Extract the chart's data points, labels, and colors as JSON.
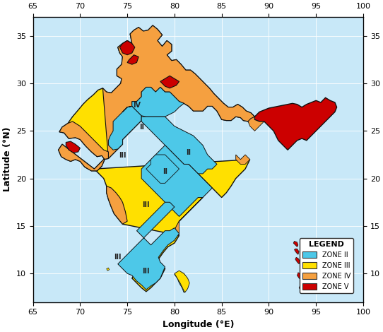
{
  "xlim": [
    65,
    100
  ],
  "ylim": [
    7,
    37
  ],
  "xticks": [
    65,
    70,
    75,
    80,
    85,
    90,
    95,
    100
  ],
  "yticks": [
    10,
    15,
    20,
    25,
    30,
    35
  ],
  "xlabel": "Longitude (°E)",
  "ylabel": "Latitude (°N)",
  "ocean_color": "#C8E8F8",
  "zone_colors": {
    "II": "#4DC8E8",
    "III": "#FFE000",
    "IV": "#F5A040",
    "V": "#CC0000"
  },
  "edge_color": "#111111",
  "figsize": [
    5.42,
    4.7
  ],
  "dpi": 100,
  "legend_title": "LEGEND",
  "legend_labels": [
    "ZONE II",
    "ZONE III",
    "ZONE IV",
    "ZONE V"
  ],
  "legend_colors": [
    "#4DC8E8",
    "#FFE000",
    "#F5A040",
    "#CC0000"
  ]
}
